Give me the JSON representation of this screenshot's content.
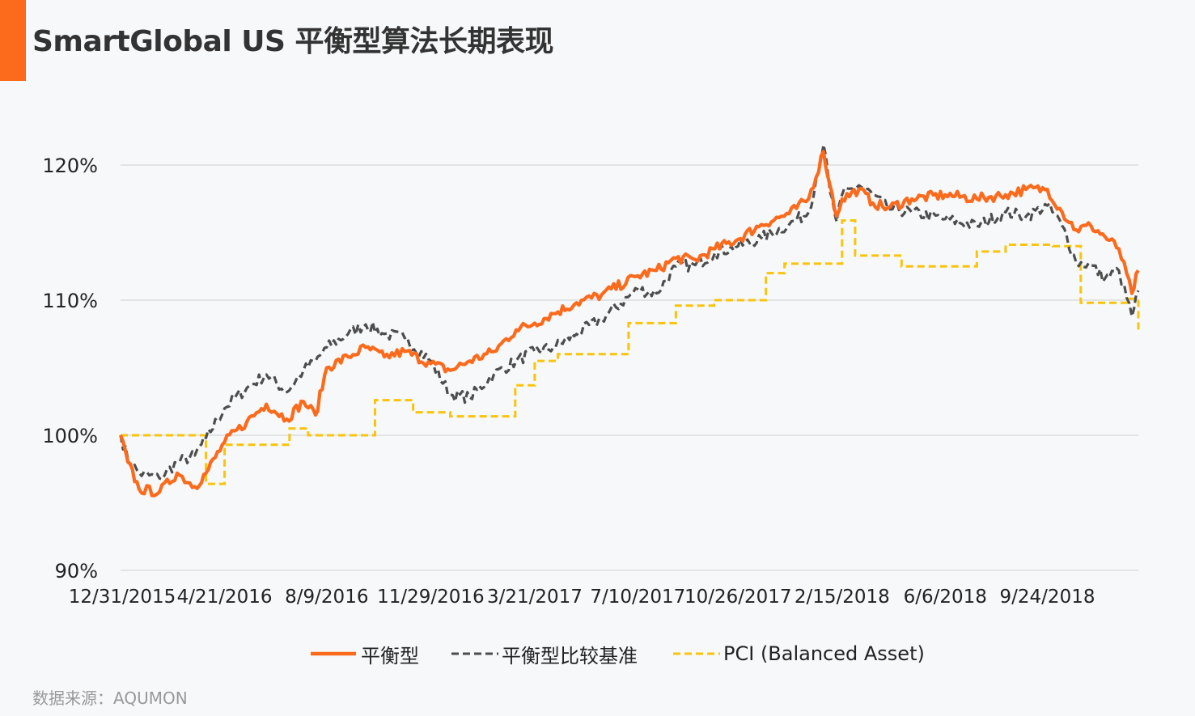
{
  "title": "SmartGlobal US 平衡型算法长期表现",
  "source": "数据来源：AQUMON",
  "colors": {
    "accent": "#fc6a1c",
    "benchmark": "#4d4d4d",
    "pci": "#f9c40b",
    "grid": "#dcdcdc",
    "text": "#222222"
  },
  "chart_data": {
    "type": "line",
    "title": "SmartGlobal US 平衡型算法长期表现",
    "xlabel": "",
    "ylabel": "",
    "ylim": [
      90,
      120
    ],
    "yticks": [
      "90%",
      "100%",
      "110%",
      "120%"
    ],
    "ytick_values": [
      90,
      100,
      110,
      120
    ],
    "xticks": [
      "12/31/2015",
      "4/21/2016",
      "8/9/2016",
      "11/29/2016",
      "3/21/2017",
      "7/10/2017",
      "10/26/2017",
      "2/15/2018",
      "6/6/2018",
      "9/24/2018"
    ],
    "x_end": "12/31/2018",
    "grid": "horizontal",
    "legend_position": "bottom",
    "series": [
      {
        "name": "平衡型",
        "style": "solid",
        "color": "#fc6a1c",
        "points": [
          [
            "12/31/2015",
            100
          ],
          [
            "1/8/2016",
            98
          ],
          [
            "1/20/2016",
            96
          ],
          [
            "2/11/2016",
            95.8
          ],
          [
            "3/1/2016",
            97.2
          ],
          [
            "3/20/2016",
            96.2
          ],
          [
            "4/1/2016",
            97.2
          ],
          [
            "4/21/2016",
            99.5
          ],
          [
            "5/15/2016",
            101
          ],
          [
            "6/5/2016",
            102.3
          ],
          [
            "6/27/2016",
            101.2
          ],
          [
            "7/15/2016",
            102.5
          ],
          [
            "7/28/2016",
            101.5
          ],
          [
            "8/9/2016",
            105
          ],
          [
            "9/1/2016",
            105.8
          ],
          [
            "9/20/2016",
            106.5
          ],
          [
            "10/10/2016",
            105.8
          ],
          [
            "11/1/2016",
            106.2
          ],
          [
            "11/29/2016",
            105.3
          ],
          [
            "12/20/2016",
            104.8
          ],
          [
            "1/10/2017",
            105.5
          ],
          [
            "2/5/2017",
            106.2
          ],
          [
            "3/1/2017",
            107.8
          ],
          [
            "3/21/2017",
            108.3
          ],
          [
            "4/10/2017",
            109
          ],
          [
            "5/5/2017",
            109.8
          ],
          [
            "6/1/2017",
            110.4
          ],
          [
            "7/10/2017",
            111.8
          ],
          [
            "7/30/2017",
            112.2
          ],
          [
            "8/20/2017",
            113.1
          ],
          [
            "9/10/2017",
            113
          ],
          [
            "10/1/2017",
            113.8
          ],
          [
            "10/26/2017",
            114.5
          ],
          [
            "11/20/2017",
            115.6
          ],
          [
            "12/20/2017",
            116.4
          ],
          [
            "1/10/2018",
            117.5
          ],
          [
            "1/26/2018",
            121
          ],
          [
            "2/2/2018",
            118.5
          ],
          [
            "2/9/2018",
            116.2
          ],
          [
            "2/15/2018",
            117.5
          ],
          [
            "3/5/2018",
            118.2
          ],
          [
            "3/20/2018",
            117.2
          ],
          [
            "4/5/2018",
            116.8
          ],
          [
            "5/1/2018",
            117.5
          ],
          [
            "6/6/2018",
            117.8
          ],
          [
            "7/10/2018",
            117.5
          ],
          [
            "8/10/2018",
            117.8
          ],
          [
            "9/1/2018",
            118.2
          ],
          [
            "9/24/2018",
            118.2
          ],
          [
            "10/10/2018",
            116.5
          ],
          [
            "10/25/2018",
            115.2
          ],
          [
            "11/10/2018",
            115.5
          ],
          [
            "11/25/2018",
            114.7
          ],
          [
            "12/10/2018",
            113.8
          ],
          [
            "12/24/2018",
            110.5
          ],
          [
            "12/31/2018",
            112.2
          ]
        ]
      },
      {
        "name": "平衡型比较基准",
        "style": "dashed",
        "color": "#4d4d4d",
        "points": [
          [
            "12/31/2015",
            100
          ],
          [
            "1/8/2016",
            98.2
          ],
          [
            "1/20/2016",
            97.2
          ],
          [
            "2/11/2016",
            96.8
          ],
          [
            "3/1/2016",
            98
          ],
          [
            "3/20/2016",
            98.5
          ],
          [
            "4/1/2016",
            99.8
          ],
          [
            "4/21/2016",
            102
          ],
          [
            "5/15/2016",
            103.5
          ],
          [
            "6/5/2016",
            104.5
          ],
          [
            "6/27/2016",
            103.2
          ],
          [
            "7/15/2016",
            104.8
          ],
          [
            "7/28/2016",
            105.5
          ],
          [
            "8/9/2016",
            106.5
          ],
          [
            "9/1/2016",
            107.5
          ],
          [
            "9/20/2016",
            108.2
          ],
          [
            "10/10/2016",
            107.5
          ],
          [
            "11/1/2016",
            107.2
          ],
          [
            "11/29/2016",
            105.5
          ],
          [
            "12/20/2016",
            103
          ],
          [
            "1/10/2017",
            102.8
          ],
          [
            "2/5/2017",
            104.5
          ],
          [
            "3/1/2017",
            105.5
          ],
          [
            "3/21/2017",
            106.2
          ],
          [
            "4/10/2017",
            106.5
          ],
          [
            "5/5/2017",
            107.5
          ],
          [
            "6/1/2017",
            108.6
          ],
          [
            "7/10/2017",
            110.8
          ],
          [
            "7/30/2017",
            110.5
          ],
          [
            "8/20/2017",
            112.5
          ],
          [
            "9/10/2017",
            112.6
          ],
          [
            "10/1/2017",
            113.5
          ],
          [
            "10/26/2017",
            114
          ],
          [
            "11/20/2017",
            114.6
          ],
          [
            "12/20/2017",
            115.6
          ],
          [
            "1/10/2018",
            116.5
          ],
          [
            "1/26/2018",
            121.5
          ],
          [
            "2/2/2018",
            118
          ],
          [
            "2/9/2018",
            115.8
          ],
          [
            "2/15/2018",
            117.8
          ],
          [
            "3/5/2018",
            118.5
          ],
          [
            "3/20/2018",
            117.8
          ],
          [
            "4/5/2018",
            116.8
          ],
          [
            "5/1/2018",
            116.5
          ],
          [
            "6/6/2018",
            116
          ],
          [
            "7/10/2018",
            115.5
          ],
          [
            "8/10/2018",
            116.5
          ],
          [
            "9/1/2018",
            116.2
          ],
          [
            "9/24/2018",
            117
          ],
          [
            "10/10/2018",
            115.5
          ],
          [
            "10/25/2018",
            112.8
          ],
          [
            "11/10/2018",
            112.6
          ],
          [
            "11/25/2018",
            111.6
          ],
          [
            "12/10/2018",
            112.2
          ],
          [
            "12/24/2018",
            108.8
          ],
          [
            "12/31/2018",
            110.7
          ]
        ]
      },
      {
        "name": "PCI (Balanced Asset)",
        "style": "dashed",
        "color": "#f9c40b",
        "steps": [
          [
            "12/31/2015",
            100
          ],
          [
            "4/1/2016",
            96.4
          ],
          [
            "4/21/2016",
            99.3
          ],
          [
            "6/30/2016",
            100.5
          ],
          [
            "7/20/2016",
            100
          ],
          [
            "9/30/2016",
            102.6
          ],
          [
            "11/10/2016",
            101.7
          ],
          [
            "12/20/2016",
            101.4
          ],
          [
            "2/28/2017",
            103.7
          ],
          [
            "3/21/2017",
            105.5
          ],
          [
            "4/15/2017",
            106
          ],
          [
            "6/30/2017",
            108.3
          ],
          [
            "8/20/2017",
            109.6
          ],
          [
            "9/30/2017",
            110
          ],
          [
            "11/25/2017",
            112
          ],
          [
            "12/15/2017",
            112.7
          ],
          [
            "2/15/2018",
            115.9
          ],
          [
            "3/1/2018",
            113.3
          ],
          [
            "4/20/2018",
            112.5
          ],
          [
            "7/10/2018",
            113.6
          ],
          [
            "8/10/2018",
            114.1
          ],
          [
            "9/30/2018",
            114
          ],
          [
            "10/30/2018",
            109.8
          ],
          [
            "12/20/2018",
            110.1
          ],
          [
            "12/31/2018",
            107.6
          ]
        ]
      }
    ]
  },
  "legend": {
    "items": [
      {
        "label": "平衡型"
      },
      {
        "label": "平衡型比较基准"
      },
      {
        "label": "PCI (Balanced Asset)"
      }
    ]
  }
}
